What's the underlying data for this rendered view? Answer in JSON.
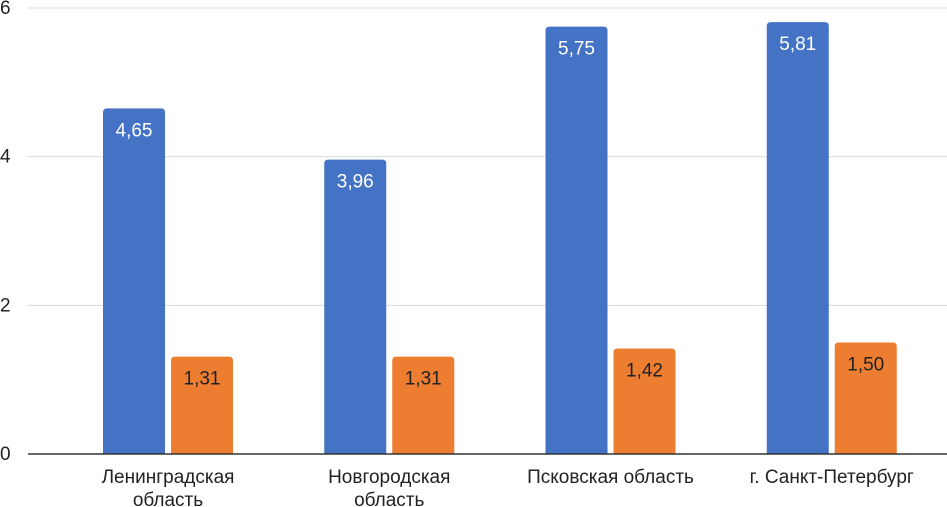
{
  "chart_data": {
    "type": "bar",
    "categories": [
      [
        "Ленинградская",
        "область"
      ],
      [
        "Новгородская",
        "область"
      ],
      [
        "Псковская область"
      ],
      [
        "г. Санкт-Петербург"
      ]
    ],
    "series": [
      {
        "values": [
          4.65,
          3.96,
          5.75,
          5.81
        ],
        "labels": [
          "4,65",
          "3,96",
          "5,75",
          "5,81"
        ],
        "color": "#4472C4",
        "label_color": "#ffffff"
      },
      {
        "values": [
          1.31,
          1.31,
          1.42,
          1.5
        ],
        "labels": [
          "1,31",
          "1,31",
          "1,42",
          "1,50"
        ],
        "color": "#ED7D31",
        "label_color": "#222222"
      }
    ],
    "yticks": [
      0,
      2,
      4,
      6
    ],
    "ylim": [
      0,
      6
    ],
    "grid": true,
    "gridline_color": "#d9d9d9",
    "axis_color": "#333333"
  }
}
